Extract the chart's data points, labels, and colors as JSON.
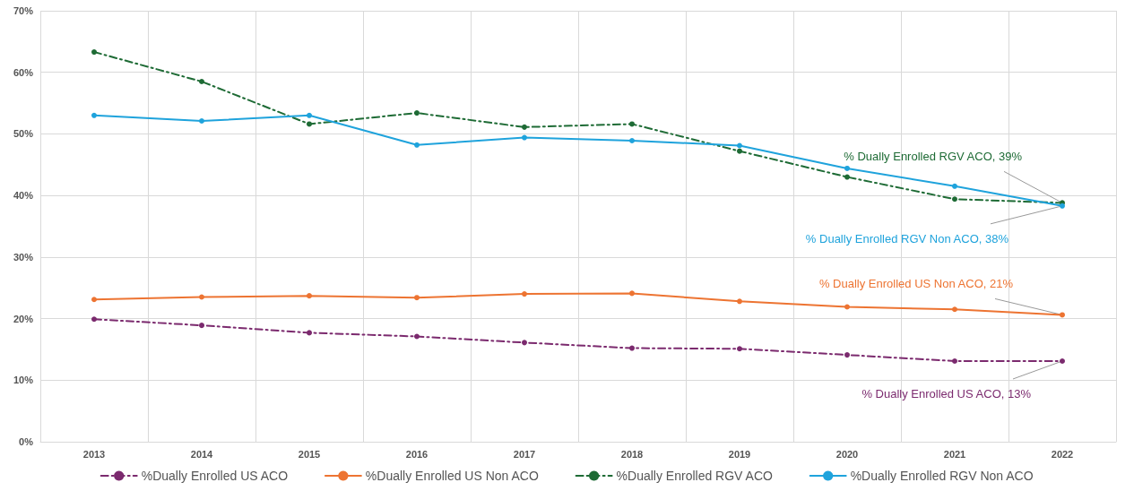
{
  "chart_data": {
    "type": "line",
    "categories": [
      "2013",
      "2014",
      "2015",
      "2016",
      "2017",
      "2018",
      "2019",
      "2020",
      "2021",
      "2022"
    ],
    "series": [
      {
        "name": "%Dually Enrolled US ACO",
        "color": "#7b2a6e",
        "line_style": "dashed",
        "values": [
          19.9,
          18.9,
          17.7,
          17.1,
          16.1,
          15.2,
          15.1,
          14.1,
          13.1,
          13.1
        ]
      },
      {
        "name": "%Dually Enrolled US Non ACO",
        "color": "#ed7432",
        "line_style": "solid",
        "values": [
          23.1,
          23.5,
          23.7,
          23.4,
          24.0,
          24.1,
          22.8,
          21.9,
          21.5,
          20.6
        ]
      },
      {
        "name": "%Dually Enrolled RGV ACO",
        "color": "#1e6b35",
        "line_style": "dashed",
        "values": [
          63.3,
          58.5,
          51.6,
          53.4,
          51.1,
          51.6,
          47.2,
          43.0,
          39.4,
          38.8
        ]
      },
      {
        "name": "%Dually Enrolled RGV Non ACO",
        "color": "#1fa3dc",
        "line_style": "solid",
        "values": [
          53.0,
          52.1,
          53.0,
          48.2,
          49.4,
          48.9,
          48.1,
          44.4,
          41.5,
          38.3
        ]
      }
    ],
    "ylim": [
      0,
      70
    ],
    "yticks": [
      {
        "value": 0,
        "label": "0%"
      },
      {
        "value": 10,
        "label": "10%"
      },
      {
        "value": 20,
        "label": "20%"
      },
      {
        "value": 30,
        "label": "30%"
      },
      {
        "value": 40,
        "label": "40%"
      },
      {
        "value": 50,
        "label": "50%"
      },
      {
        "value": 60,
        "label": "60%"
      },
      {
        "value": 70,
        "label": "70%"
      }
    ],
    "annotations": [
      {
        "text": "% Dually Enrolled US ACO, 13%",
        "x": "2022",
        "y": 13.1
      },
      {
        "text": "% Dually Enrolled US Non ACO, 21%",
        "x": "2022",
        "y": 20.6
      },
      {
        "text": "% Dually Enrolled RGV ACO, 39%",
        "x": "2022",
        "y": 38.8
      },
      {
        "text": "% Dually Enrolled RGV Non ACO, 38%",
        "x": "2022",
        "y": 38.3
      }
    ],
    "grid": true,
    "legend": "bottom",
    "marker": "circle"
  }
}
